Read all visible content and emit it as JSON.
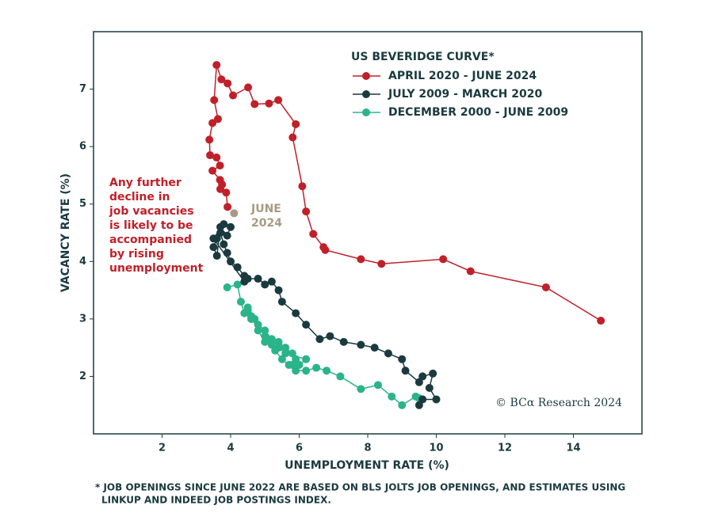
{
  "chart_data": {
    "type": "scatter",
    "legend_title": "US BEVERIDGE CURVE*",
    "x_label": "UNEMPLOYMENT RATE (%)",
    "y_label": "VACANCY RATE (%)",
    "xlim": [
      0,
      16
    ],
    "ylim": [
      1,
      8
    ],
    "xticks": [
      2,
      4,
      6,
      8,
      10,
      12,
      14
    ],
    "yticks": [
      2,
      3,
      4,
      5,
      6,
      7
    ],
    "grid": false,
    "legend": "upper right",
    "series": [
      {
        "name": "DECEMBER 2000 - JUNE 2009",
        "color": "#2bb38a",
        "x": [
          3.9,
          4.2,
          4.3,
          4.4,
          4.5,
          4.6,
          4.8,
          5.0,
          5.2,
          5.4,
          5.6,
          5.8,
          5.9,
          5.8,
          6.0,
          6.2,
          5.6,
          5.4,
          5.2,
          5.0,
          4.8,
          4.6,
          4.5,
          4.7,
          5.0,
          5.3,
          5.5,
          5.7,
          5.9,
          6.2,
          6.5,
          6.8,
          7.2,
          7.8,
          8.3,
          8.7,
          9.0,
          9.4,
          9.5
        ],
        "values": [
          3.55,
          3.6,
          3.3,
          3.1,
          3.2,
          3.0,
          2.9,
          2.8,
          2.65,
          2.6,
          2.5,
          2.4,
          2.3,
          2.2,
          2.2,
          2.3,
          2.4,
          2.5,
          2.55,
          2.6,
          2.8,
          3.05,
          3.15,
          3.0,
          2.7,
          2.45,
          2.3,
          2.2,
          2.1,
          2.1,
          2.15,
          2.1,
          2.0,
          1.78,
          1.85,
          1.65,
          1.5,
          1.65,
          1.62
        ]
      },
      {
        "name": "JULY 2009 - MARCH 2020",
        "color": "#1a3a40",
        "x": [
          9.5,
          9.6,
          10.0,
          9.8,
          9.9,
          9.6,
          9.5,
          9.1,
          9.0,
          8.6,
          8.2,
          7.8,
          7.3,
          6.9,
          6.6,
          6.2,
          5.9,
          5.5,
          5.4,
          5.2,
          5.0,
          4.8,
          4.5,
          4.4,
          4.2,
          4.0,
          3.9,
          3.8,
          3.7,
          3.6,
          3.5,
          3.6,
          3.7,
          3.9,
          4.0,
          3.8,
          3.5,
          4.4
        ],
        "values": [
          1.5,
          1.6,
          1.6,
          1.8,
          2.05,
          2.0,
          1.9,
          2.1,
          2.3,
          2.4,
          2.5,
          2.55,
          2.6,
          2.7,
          2.65,
          2.9,
          3.1,
          3.3,
          3.5,
          3.65,
          3.6,
          3.7,
          3.7,
          3.75,
          3.9,
          4.0,
          4.15,
          4.3,
          4.5,
          4.4,
          4.25,
          4.1,
          4.6,
          4.45,
          4.6,
          4.65,
          4.4,
          3.65
        ]
      },
      {
        "name": "APRIL 2020 - JUNE 2024",
        "color": "#c0202a",
        "x": [
          14.8,
          13.2,
          11.0,
          10.2,
          8.4,
          7.8,
          6.76,
          6.71,
          6.41,
          6.2,
          6.09,
          5.81,
          5.9,
          5.39,
          5.12,
          4.7,
          4.51,
          4.07,
          3.91,
          3.73,
          3.59,
          3.52,
          3.63,
          3.47,
          3.38,
          3.4,
          3.59,
          3.69,
          3.47,
          3.69,
          3.75,
          3.7,
          3.87,
          3.91
        ],
        "values": [
          2.97,
          3.55,
          3.83,
          4.04,
          3.96,
          4.04,
          4.2,
          4.25,
          4.48,
          4.87,
          5.31,
          6.16,
          6.39,
          6.81,
          6.75,
          6.74,
          7.03,
          6.89,
          7.1,
          7.17,
          7.42,
          6.81,
          6.48,
          6.41,
          6.12,
          5.85,
          5.81,
          5.67,
          5.58,
          5.42,
          5.34,
          5.26,
          5.2,
          4.95
        ]
      }
    ],
    "highlight_point": {
      "x": 4.1,
      "y": 4.84,
      "color": "#a89a82",
      "label": [
        "JUNE",
        "2024"
      ]
    },
    "annotation": [
      "Any further",
      "decline in",
      "job vacancies",
      "is likely to be",
      "accompanied",
      "by rising",
      "unemployment"
    ],
    "annotation_color": "#c0202a",
    "source": "© BCα Research 2024",
    "footnote": [
      "* JOB OPENINGS SINCE JUNE 2022 ARE BASED ON BLS JOLTS JOB OPENINGS, AND ESTIMATES USING",
      "LINKUP AND INDEED JOB POSTINGS INDEX."
    ]
  }
}
